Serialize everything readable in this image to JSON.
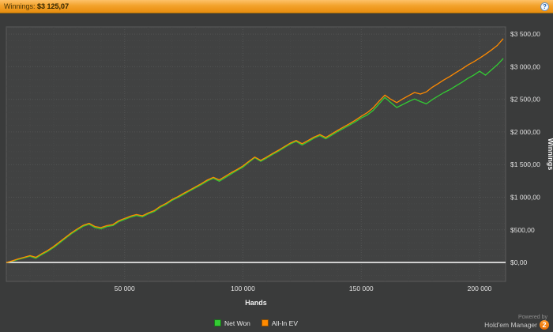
{
  "topbar": {
    "label": "Winnings:",
    "value": "$3 125,07",
    "help_icon": "?"
  },
  "chart_data": {
    "type": "line",
    "title": "",
    "xlabel": "Hands",
    "ylabel": "Winnings",
    "xlim": [
      0,
      211000
    ],
    "ylim": [
      -290,
      3610
    ],
    "x_ticks": [
      50000,
      100000,
      150000,
      200000
    ],
    "x_tick_labels": [
      "50 000",
      "100 000",
      "150 000",
      "200 000"
    ],
    "y_ticks": [
      0,
      500,
      1000,
      1500,
      2000,
      2500,
      3000,
      3500
    ],
    "y_tick_labels": [
      "$0,00",
      "$500,00",
      "$1 000,00",
      "$1 500,00",
      "$2 000,00",
      "$2 500,00",
      "$3 000,00",
      "$3 500,00"
    ],
    "grid": true,
    "legend_position": "bottom",
    "zero_line_value": 0,
    "zero_line_color": "#ffffff",
    "series": [
      {
        "name": "Net Won",
        "color": "#33cc33",
        "points": [
          [
            0,
            0
          ],
          [
            2500,
            20
          ],
          [
            5000,
            45
          ],
          [
            7500,
            70
          ],
          [
            10000,
            95
          ],
          [
            12500,
            65
          ],
          [
            15000,
            120
          ],
          [
            17500,
            170
          ],
          [
            20000,
            230
          ],
          [
            22500,
            300
          ],
          [
            25000,
            370
          ],
          [
            27500,
            440
          ],
          [
            30000,
            500
          ],
          [
            32500,
            555
          ],
          [
            35000,
            585
          ],
          [
            37500,
            535
          ],
          [
            40000,
            515
          ],
          [
            42500,
            550
          ],
          [
            45000,
            565
          ],
          [
            47500,
            625
          ],
          [
            50000,
            660
          ],
          [
            52500,
            695
          ],
          [
            55000,
            720
          ],
          [
            57500,
            700
          ],
          [
            60000,
            745
          ],
          [
            62500,
            780
          ],
          [
            65000,
            845
          ],
          [
            67500,
            890
          ],
          [
            70000,
            950
          ],
          [
            72500,
            995
          ],
          [
            75000,
            1045
          ],
          [
            77500,
            1095
          ],
          [
            80000,
            1145
          ],
          [
            82500,
            1195
          ],
          [
            85000,
            1250
          ],
          [
            87500,
            1290
          ],
          [
            90000,
            1245
          ],
          [
            92500,
            1300
          ],
          [
            95000,
            1355
          ],
          [
            97500,
            1410
          ],
          [
            100000,
            1460
          ],
          [
            102500,
            1535
          ],
          [
            105000,
            1605
          ],
          [
            107500,
            1550
          ],
          [
            110000,
            1600
          ],
          [
            112500,
            1655
          ],
          [
            115000,
            1705
          ],
          [
            117500,
            1760
          ],
          [
            120000,
            1815
          ],
          [
            122500,
            1855
          ],
          [
            125000,
            1800
          ],
          [
            127500,
            1850
          ],
          [
            130000,
            1905
          ],
          [
            132500,
            1945
          ],
          [
            135000,
            1895
          ],
          [
            137500,
            1950
          ],
          [
            140000,
            2005
          ],
          [
            142500,
            2055
          ],
          [
            145000,
            2105
          ],
          [
            147500,
            2155
          ],
          [
            150000,
            2215
          ],
          [
            152500,
            2260
          ],
          [
            155000,
            2330
          ],
          [
            157500,
            2430
          ],
          [
            160000,
            2530
          ],
          [
            162500,
            2450
          ],
          [
            165000,
            2375
          ],
          [
            167500,
            2420
          ],
          [
            170000,
            2465
          ],
          [
            172500,
            2505
          ],
          [
            175000,
            2465
          ],
          [
            177500,
            2430
          ],
          [
            180000,
            2495
          ],
          [
            182500,
            2550
          ],
          [
            185000,
            2605
          ],
          [
            187500,
            2650
          ],
          [
            190000,
            2705
          ],
          [
            192500,
            2760
          ],
          [
            195000,
            2820
          ],
          [
            197500,
            2870
          ],
          [
            200000,
            2930
          ],
          [
            202500,
            2870
          ],
          [
            205000,
            2950
          ],
          [
            207500,
            3030
          ],
          [
            210000,
            3125
          ]
        ]
      },
      {
        "name": "All-In EV",
        "color": "#ff8a00",
        "points": [
          [
            0,
            0
          ],
          [
            2500,
            25
          ],
          [
            5000,
            55
          ],
          [
            7500,
            80
          ],
          [
            10000,
            105
          ],
          [
            12500,
            80
          ],
          [
            15000,
            135
          ],
          [
            17500,
            185
          ],
          [
            20000,
            245
          ],
          [
            22500,
            315
          ],
          [
            25000,
            385
          ],
          [
            27500,
            455
          ],
          [
            30000,
            515
          ],
          [
            32500,
            570
          ],
          [
            35000,
            600
          ],
          [
            37500,
            550
          ],
          [
            40000,
            535
          ],
          [
            42500,
            565
          ],
          [
            45000,
            580
          ],
          [
            47500,
            640
          ],
          [
            50000,
            675
          ],
          [
            52500,
            710
          ],
          [
            55000,
            735
          ],
          [
            57500,
            715
          ],
          [
            60000,
            760
          ],
          [
            62500,
            795
          ],
          [
            65000,
            860
          ],
          [
            67500,
            905
          ],
          [
            70000,
            965
          ],
          [
            72500,
            1010
          ],
          [
            75000,
            1060
          ],
          [
            77500,
            1110
          ],
          [
            80000,
            1160
          ],
          [
            82500,
            1210
          ],
          [
            85000,
            1265
          ],
          [
            87500,
            1305
          ],
          [
            90000,
            1265
          ],
          [
            92500,
            1320
          ],
          [
            95000,
            1375
          ],
          [
            97500,
            1425
          ],
          [
            100000,
            1480
          ],
          [
            102500,
            1550
          ],
          [
            105000,
            1615
          ],
          [
            107500,
            1565
          ],
          [
            110000,
            1615
          ],
          [
            112500,
            1670
          ],
          [
            115000,
            1720
          ],
          [
            117500,
            1775
          ],
          [
            120000,
            1830
          ],
          [
            122500,
            1870
          ],
          [
            125000,
            1820
          ],
          [
            127500,
            1870
          ],
          [
            130000,
            1920
          ],
          [
            132500,
            1960
          ],
          [
            135000,
            1915
          ],
          [
            137500,
            1970
          ],
          [
            140000,
            2025
          ],
          [
            142500,
            2075
          ],
          [
            145000,
            2125
          ],
          [
            147500,
            2180
          ],
          [
            150000,
            2240
          ],
          [
            152500,
            2295
          ],
          [
            155000,
            2370
          ],
          [
            157500,
            2470
          ],
          [
            160000,
            2565
          ],
          [
            162500,
            2500
          ],
          [
            165000,
            2450
          ],
          [
            167500,
            2505
          ],
          [
            170000,
            2555
          ],
          [
            172500,
            2605
          ],
          [
            175000,
            2580
          ],
          [
            177500,
            2615
          ],
          [
            180000,
            2685
          ],
          [
            182500,
            2740
          ],
          [
            185000,
            2800
          ],
          [
            187500,
            2850
          ],
          [
            190000,
            2910
          ],
          [
            192500,
            2965
          ],
          [
            195000,
            3025
          ],
          [
            197500,
            3075
          ],
          [
            200000,
            3130
          ],
          [
            202500,
            3190
          ],
          [
            205000,
            3255
          ],
          [
            207500,
            3325
          ],
          [
            210000,
            3430
          ]
        ]
      }
    ]
  },
  "footer": {
    "powered_by": "Powered by",
    "brand": "Hold'em Manager",
    "logo": "2"
  },
  "colors": {
    "topbar_gradient_top": "#fdc269",
    "topbar_gradient_bottom": "#e88d0e",
    "background": "#3a3b3b",
    "plot_background": "#414242",
    "net_won": "#33cc33",
    "all_in_ev": "#ff8a00",
    "zero_line": "#ffffff"
  }
}
